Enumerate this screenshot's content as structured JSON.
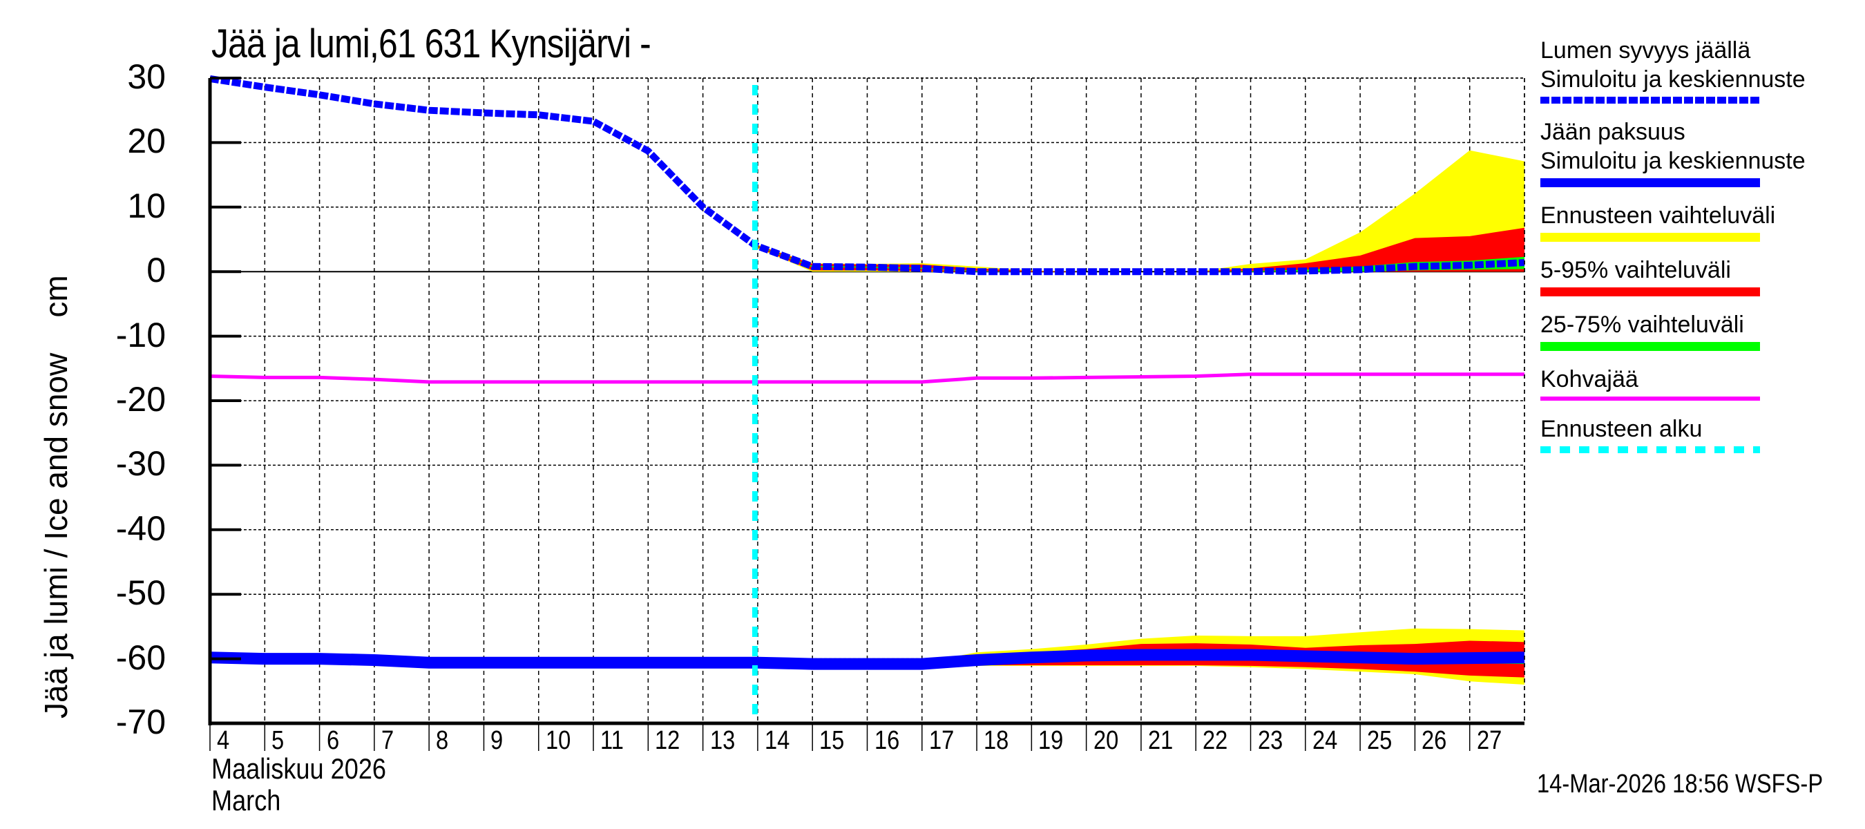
{
  "title": "Jää ja lumi,61 631 Kynsijärvi -",
  "y_axis": {
    "label": "Jää ja lumi / Ice and snow    cm",
    "ticks": [
      "30",
      "20",
      "10",
      "0",
      "-10",
      "-20",
      "-30",
      "-40",
      "-50",
      "-60",
      "-70"
    ]
  },
  "x_axis": {
    "ticks": [
      "4",
      "5",
      "6",
      "7",
      "8",
      "9",
      "10",
      "11",
      "12",
      "13",
      "14",
      "15",
      "16",
      "17",
      "18",
      "19",
      "20",
      "21",
      "22",
      "23",
      "24",
      "25",
      "26",
      "27"
    ],
    "month_fi": "Maaliskuu 2026",
    "month_en": "March"
  },
  "legend": [
    {
      "line1": "Lumen syvyys jäällä",
      "line2": "Simuloitu ja keskiennuste",
      "style": "dashed",
      "color": "#0000ff"
    },
    {
      "line1": "Jään paksuus",
      "line2": "Simuloitu ja keskiennuste",
      "style": "solid-thick",
      "color": "#0000ff"
    },
    {
      "line1": "Ennusteen vaihteluväli",
      "style": "solid-thick",
      "color": "#ffff00"
    },
    {
      "line1": "5-95% vaihteluväli",
      "style": "solid-thick",
      "color": "#ff0000"
    },
    {
      "line1": "25-75% vaihteluväli",
      "style": "solid-thick",
      "color": "#00ff00"
    },
    {
      "line1": "Kohvajää",
      "style": "solid",
      "color": "#ff00ff"
    },
    {
      "line1": "Ennusteen alku",
      "style": "dashed",
      "color": "#00ffff"
    }
  ],
  "footer": "14-Mar-2026 18:56 WSFS-P",
  "chart_data": {
    "type": "line",
    "title": "Jää ja lumi,61 631 Kynsijärvi -",
    "xlabel": "Maaliskuu 2026 / March",
    "ylabel": "Jää ja lumi / Ice and snow cm",
    "xlim": [
      4,
      28
    ],
    "ylim": [
      -70,
      30
    ],
    "grid": true,
    "legend_position": "right",
    "forecast_start_day": 13.95,
    "colors": {
      "snow": "#0000ff",
      "ice": "#0000ff",
      "range_full": "#ffff00",
      "range_5_95": "#ff0000",
      "range_25_75": "#00ff00",
      "slush": "#ff00ff",
      "forecast_start": "#00ffff"
    },
    "snow_depth": {
      "name": "Lumen syvyys jäällä - Simuloitu ja keskiennuste",
      "x": [
        4,
        5,
        6,
        7,
        8,
        9,
        10,
        11,
        12,
        13,
        13.95,
        15,
        16,
        17,
        18,
        19,
        20,
        21,
        22,
        23,
        24,
        25,
        26,
        27,
        28
      ],
      "y": [
        29.9,
        28.6,
        27.4,
        26.0,
        25.0,
        24.6,
        24.3,
        23.3,
        18.7,
        10.0,
        4.1,
        0.8,
        0.7,
        0.5,
        0.0,
        0.0,
        0.0,
        0.0,
        0.0,
        0.0,
        0.1,
        0.3,
        0.8,
        1.0,
        1.4
      ]
    },
    "snow_range": {
      "x": [
        13.95,
        15,
        16,
        17,
        18,
        19,
        20,
        21,
        22,
        23,
        24,
        25,
        26,
        27,
        28
      ],
      "full_upper": [
        4.3,
        1.3,
        1.2,
        1.3,
        0.8,
        0.2,
        0.0,
        0.0,
        0.0,
        1.2,
        1.9,
        6.1,
        12.1,
        18.8,
        17.1
      ],
      "p95": [
        4.2,
        1.2,
        1.1,
        1.1,
        0.5,
        0.1,
        0.0,
        0.0,
        0.0,
        0.5,
        1.3,
        2.5,
        5.2,
        5.5,
        6.8
      ],
      "p75": [
        4.1,
        0.9,
        0.8,
        0.6,
        0.1,
        0.0,
        0.0,
        0.0,
        0.0,
        0.1,
        0.3,
        0.8,
        1.5,
        1.7,
        2.3
      ],
      "p25": [
        4.0,
        0.7,
        0.6,
        0.4,
        0.0,
        0.0,
        0.0,
        0.0,
        0.0,
        0.0,
        0.0,
        0.0,
        0.2,
        0.3,
        0.4
      ],
      "p5": [
        3.9,
        0.2,
        0.2,
        0.1,
        0.0,
        0.0,
        0.0,
        0.0,
        0.0,
        0.0,
        0.0,
        0.0,
        0.0,
        0.0,
        0.0
      ],
      "full_lower": [
        3.8,
        0.0,
        0.0,
        0.0,
        0.0,
        0.0,
        0.0,
        0.0,
        0.0,
        0.0,
        0.0,
        0.0,
        0.0,
        0.0,
        0.0
      ]
    },
    "ice_thickness": {
      "name": "Jään paksuus - Simuloitu ja keskiennuste (plotted negative)",
      "x": [
        4,
        5,
        6,
        7,
        8,
        9,
        10,
        11,
        12,
        13,
        14,
        15,
        16,
        17,
        18,
        19,
        20,
        21,
        22,
        23,
        24,
        25,
        26,
        27,
        28
      ],
      "y": [
        -59.8,
        -60.0,
        -60.0,
        -60.2,
        -60.6,
        -60.6,
        -60.6,
        -60.6,
        -60.6,
        -60.6,
        -60.6,
        -60.8,
        -60.8,
        -60.8,
        -60.2,
        -59.8,
        -59.5,
        -59.4,
        -59.4,
        -59.4,
        -59.6,
        -59.8,
        -60.0,
        -59.9,
        -59.8
      ]
    },
    "ice_range": {
      "x": [
        17,
        18,
        19,
        20,
        21,
        22,
        23,
        24,
        25,
        26,
        27,
        28
      ],
      "full_upper": [
        -60.6,
        -59.0,
        -58.5,
        -57.8,
        -56.9,
        -56.4,
        -56.5,
        -56.5,
        -55.9,
        -55.3,
        -55.4,
        -55.6
      ],
      "p95": [
        -60.6,
        -59.5,
        -59.0,
        -58.5,
        -57.7,
        -57.6,
        -57.8,
        -58.3,
        -57.9,
        -57.7,
        -57.2,
        -57.4
      ],
      "p75": [
        -60.6,
        -60.0,
        -59.5,
        -59.2,
        -59.1,
        -59.1,
        -59.1,
        -59.2,
        -59.3,
        -59.4,
        -59.2,
        -59.1
      ],
      "p25": [
        -61.0,
        -60.5,
        -60.1,
        -59.8,
        -59.7,
        -59.7,
        -59.7,
        -60.0,
        -60.3,
        -60.5,
        -60.7,
        -60.8
      ],
      "p5": [
        -61.0,
        -61.0,
        -61.0,
        -61.0,
        -61.0,
        -61.0,
        -61.1,
        -61.3,
        -61.6,
        -62.0,
        -62.6,
        -62.9
      ],
      "full_lower": [
        -61.0,
        -61.1,
        -61.1,
        -61.1,
        -61.1,
        -61.1,
        -61.3,
        -61.6,
        -62.0,
        -62.4,
        -63.5,
        -64.0
      ]
    },
    "slush_ice": {
      "name": "Kohvajää",
      "x": [
        4,
        5,
        6,
        7,
        8,
        9,
        10,
        11,
        12,
        13,
        14,
        15,
        16,
        17,
        18,
        19,
        20,
        21,
        22,
        23,
        24,
        25,
        26,
        27,
        28
      ],
      "y": [
        -16.2,
        -16.4,
        -16.4,
        -16.7,
        -17.1,
        -17.1,
        -17.1,
        -17.1,
        -17.1,
        -17.1,
        -17.1,
        -17.1,
        -17.1,
        -17.1,
        -16.5,
        -16.5,
        -16.4,
        -16.3,
        -16.2,
        -15.9,
        -15.9,
        -15.9,
        -15.9,
        -15.9,
        -15.9
      ]
    }
  }
}
